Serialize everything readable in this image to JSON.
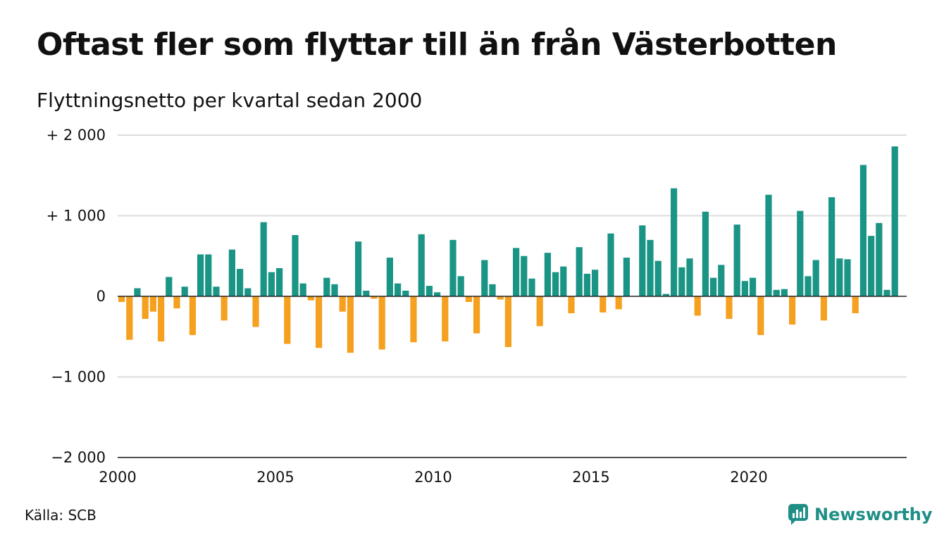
{
  "title": "Oftast fler som flyttar till än från Västerbotten",
  "subtitle": "Flyttningsnetto per kvartal sedan 2000",
  "source": "Källa: SCB",
  "brand": {
    "name": "Newsworthy",
    "icon": "newsworthy-logo-icon"
  },
  "colors": {
    "positive": "#1a9485",
    "negative": "#f5a01e",
    "grid": "#dddddd",
    "axis": "#222222",
    "brand": "#1f8f86"
  },
  "chart_data": {
    "type": "bar",
    "title": "Oftast fler som flyttar till än från Västerbotten",
    "subtitle": "Flyttningsnetto per kvartal sedan 2000",
    "xlabel": "",
    "ylabel": "",
    "x_range": [
      2000,
      2025
    ],
    "ylim": [
      -2000,
      2000
    ],
    "y_ticks": [
      {
        "value": 2000,
        "label": "+ 2 000"
      },
      {
        "value": 1000,
        "label": "+ 1 000"
      },
      {
        "value": 0,
        "label": "0"
      },
      {
        "value": -1000,
        "label": "−1 000"
      },
      {
        "value": -2000,
        "label": "−2 000"
      }
    ],
    "x_ticks": [
      {
        "value": 2000,
        "label": "2000"
      },
      {
        "value": 2005,
        "label": "2005"
      },
      {
        "value": 2010,
        "label": "2010"
      },
      {
        "value": 2015,
        "label": "2015"
      },
      {
        "value": 2020,
        "label": "2020"
      }
    ],
    "grid": true,
    "legend": "none",
    "series": [
      {
        "start_period": "2000 Q1",
        "values": [
          -70,
          -540,
          100,
          -280,
          -190,
          -560,
          240,
          -150,
          120,
          -480,
          520,
          520,
          120,
          -300,
          580,
          340,
          100,
          -380,
          920,
          300,
          350,
          -590,
          760,
          160,
          -50,
          -640,
          230,
          150,
          -190,
          -700,
          680,
          70,
          -30,
          -660,
          480,
          160,
          70,
          -570,
          770,
          130,
          50,
          -560,
          700,
          250,
          -70,
          -460,
          450,
          150,
          -40,
          -630,
          600,
          500,
          220,
          -370,
          540,
          300,
          370,
          -210,
          610,
          280,
          330,
          -200,
          780,
          -160,
          480,
          0,
          880,
          700,
          440,
          30,
          1340,
          360,
          470,
          -240,
          1050,
          230,
          390,
          -280,
          890,
          190,
          230,
          -480,
          1260,
          80,
          90,
          -350,
          1060,
          250,
          450,
          -300,
          1230,
          470,
          460,
          -210,
          1630,
          750,
          910,
          80,
          1860
        ]
      }
    ]
  }
}
